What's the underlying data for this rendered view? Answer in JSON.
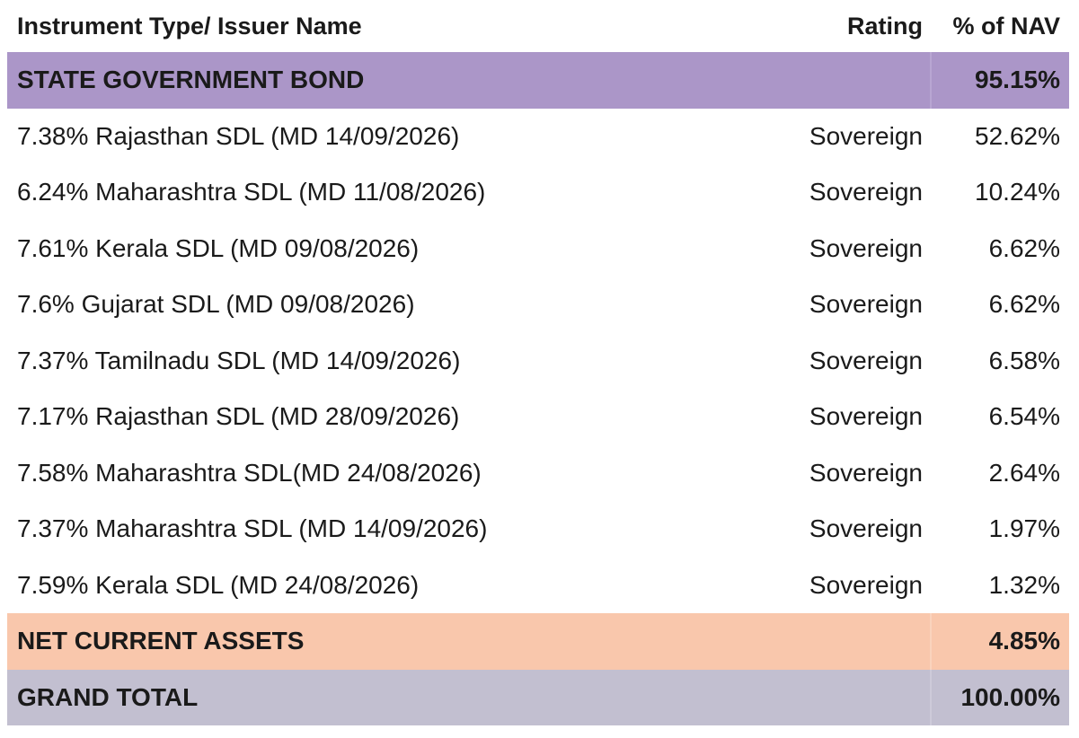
{
  "header": {
    "instrument": "Instrument Type/ Issuer Name",
    "rating": "Rating",
    "nav": "% of NAV"
  },
  "sections": {
    "government": {
      "label": "STATE GOVERNMENT BOND",
      "nav": "95.15%"
    },
    "net_current_assets": {
      "label": "NET CURRENT ASSETS",
      "nav": "4.85%"
    },
    "grand_total": {
      "label": "GRAND TOTAL",
      "nav": "100.00%"
    }
  },
  "rows": [
    {
      "name": "7.38% Rajasthan SDL (MD 14/09/2026)",
      "rating": "Sovereign",
      "nav": "52.62%"
    },
    {
      "name": "6.24% Maharashtra SDL (MD 11/08/2026)",
      "rating": "Sovereign",
      "nav": "10.24%"
    },
    {
      "name": "7.61% Kerala SDL (MD 09/08/2026)",
      "rating": "Sovereign",
      "nav": "6.62%"
    },
    {
      "name": "7.6% Gujarat SDL (MD 09/08/2026)",
      "rating": "Sovereign",
      "nav": "6.62%"
    },
    {
      "name": "7.37% Tamilnadu SDL (MD 14/09/2026)",
      "rating": "Sovereign",
      "nav": "6.58%"
    },
    {
      "name": "7.17% Rajasthan SDL (MD 28/09/2026)",
      "rating": "Sovereign",
      "nav": "6.54%"
    },
    {
      "name": "7.58% Maharashtra SDL(MD 24/08/2026)",
      "rating": "Sovereign",
      "nav": "2.64%"
    },
    {
      "name": "7.37% Maharashtra SDL (MD 14/09/2026)",
      "rating": "Sovereign",
      "nav": "1.97%"
    },
    {
      "name": "7.59% Kerala SDL (MD 24/08/2026)",
      "rating": "Sovereign",
      "nav": "1.32%"
    }
  ]
}
